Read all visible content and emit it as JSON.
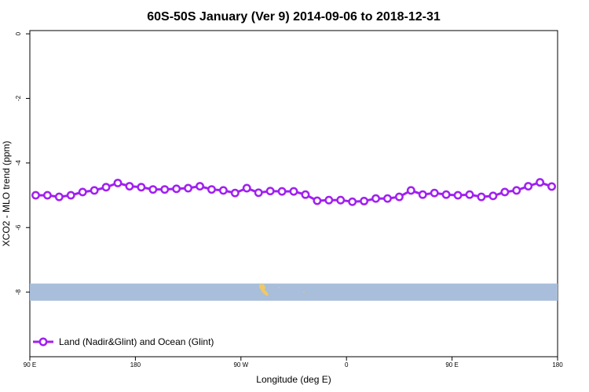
{
  "chart_data": {
    "type": "line",
    "title": "60S-50S January (Ver 9)   2014-09-06 to 2018-12-31",
    "xlabel": "Longitude (deg E)",
    "ylabel": "XCO2 - MLO trend (ppm)",
    "xlim": [
      90,
      540
    ],
    "ylim": [
      -10,
      0.1
    ],
    "x_ticks": [
      {
        "value": 90,
        "label": "90 E"
      },
      {
        "value": 180,
        "label": "180"
      },
      {
        "value": 270,
        "label": "90 W"
      },
      {
        "value": 360,
        "label": "0"
      },
      {
        "value": 450,
        "label": "90 E"
      },
      {
        "value": 540,
        "label": "180"
      }
    ],
    "y_ticks": [
      {
        "value": 0,
        "label": "0"
      },
      {
        "value": -2,
        "label": "-2"
      },
      {
        "value": -4,
        "label": "-4"
      },
      {
        "value": -6,
        "label": "-6"
      },
      {
        "value": -8,
        "label": "-8"
      }
    ],
    "grid": false,
    "legend_position": "bottom-left",
    "series": [
      {
        "name": "Land (Nadir&Glint) and Ocean (Glint)",
        "color": "#a020f0",
        "marker": "open-circle",
        "x": [
          95,
          105,
          115,
          125,
          135,
          145,
          155,
          165,
          175,
          185,
          195,
          205,
          215,
          225,
          235,
          245,
          255,
          265,
          275,
          285,
          295,
          305,
          315,
          325,
          335,
          345,
          355,
          365,
          375,
          385,
          395,
          405,
          415,
          425,
          435,
          445,
          455,
          465,
          475,
          485,
          495,
          505,
          515,
          525,
          535
        ],
        "values": [
          -5.0,
          -5.0,
          -5.05,
          -5.0,
          -4.9,
          -4.85,
          -4.75,
          -4.62,
          -4.72,
          -4.75,
          -4.82,
          -4.82,
          -4.8,
          -4.78,
          -4.72,
          -4.82,
          -4.85,
          -4.93,
          -4.78,
          -4.92,
          -4.87,
          -4.88,
          -4.88,
          -4.98,
          -5.17,
          -5.15,
          -5.15,
          -5.2,
          -5.18,
          -5.1,
          -5.1,
          -5.05,
          -4.85,
          -4.98,
          -4.93,
          -4.98,
          -5.0,
          -4.98,
          -5.05,
          -5.02,
          -4.9,
          -4.85,
          -4.72,
          -4.6,
          -4.73
        ]
      }
    ]
  },
  "map_strip": {
    "ocean_color": "#a8bedb",
    "land_color": "#f2c864",
    "lat_range": [
      -60,
      -50
    ]
  }
}
